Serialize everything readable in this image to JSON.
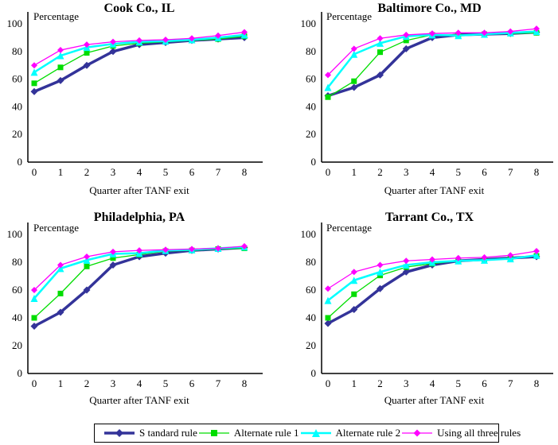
{
  "figure": {
    "background": "#ffffff",
    "text_color": "#000000"
  },
  "series_defs": [
    {
      "name": "S tandard rule",
      "color": "#333399",
      "marker": "diamond",
      "line_width": 3.5,
      "marker_size": 4.5
    },
    {
      "name": "Alternate rule 1",
      "color": "#00DD00",
      "marker": "square",
      "line_width": 1.3,
      "marker_size": 3.5
    },
    {
      "name": "Alternate rule 2",
      "color": "#00FFFF",
      "marker": "triangle",
      "line_width": 2.5,
      "marker_size": 4.5
    },
    {
      "name": "Using all three rules",
      "color": "#FF00FF",
      "marker": "diamond",
      "line_width": 1.3,
      "marker_size": 4
    }
  ],
  "chart_data": [
    {
      "type": "line",
      "title": "Cook Co., IL",
      "ylabel": "Percentage",
      "xlabel": "Quarter after TANF exit",
      "x": [
        0,
        1,
        2,
        3,
        4,
        5,
        6,
        7,
        8
      ],
      "ylim": [
        0,
        100
      ],
      "yticks": [
        0,
        20,
        40,
        60,
        80,
        100
      ],
      "grid": false,
      "legend_position": "bottom-shared",
      "series": [
        {
          "name": "S tandard rule",
          "values": [
            51,
            59,
            70,
            80,
            85,
            86.5,
            88,
            89,
            90
          ]
        },
        {
          "name": "Alternate rule 1",
          "values": [
            57,
            68.5,
            79,
            84,
            86,
            87,
            88,
            89,
            91
          ]
        },
        {
          "name": "Alternate rule 2",
          "values": [
            65,
            77,
            83,
            85.5,
            87,
            87.5,
            88.5,
            90,
            92
          ]
        },
        {
          "name": "Using all three rules",
          "values": [
            70,
            81,
            85,
            87,
            88,
            88.5,
            89.5,
            91.5,
            94
          ]
        }
      ]
    },
    {
      "type": "line",
      "title": "Baltimore Co., MD",
      "ylabel": "Percentage",
      "xlabel": "Quarter after TANF exit",
      "x": [
        0,
        1,
        2,
        3,
        4,
        5,
        6,
        7,
        8
      ],
      "ylim": [
        0,
        100
      ],
      "yticks": [
        0,
        20,
        40,
        60,
        80,
        100
      ],
      "grid": false,
      "legend_position": "bottom-shared",
      "series": [
        {
          "name": "S tandard rule",
          "values": [
            48,
            54,
            63,
            82,
            90,
            92,
            92.5,
            93,
            94
          ]
        },
        {
          "name": "Alternate rule 1",
          "values": [
            47,
            58.5,
            79.5,
            88,
            92,
            92,
            92.5,
            93,
            93.5
          ]
        },
        {
          "name": "Alternate rule 2",
          "values": [
            54,
            78,
            86,
            91,
            92,
            91.5,
            92.5,
            93.5,
            94.5
          ]
        },
        {
          "name": "Using all three rules",
          "values": [
            63,
            82,
            89.5,
            92,
            93,
            93.5,
            93.5,
            94.5,
            96.5
          ]
        }
      ]
    },
    {
      "type": "line",
      "title": "Philadelphia, PA",
      "ylabel": "Percentage",
      "xlabel": "Quarter after TANF exit",
      "x": [
        0,
        1,
        2,
        3,
        4,
        5,
        6,
        7,
        8
      ],
      "ylim": [
        0,
        100
      ],
      "yticks": [
        0,
        20,
        40,
        60,
        80,
        100
      ],
      "grid": false,
      "legend_position": "bottom-shared",
      "series": [
        {
          "name": "S tandard rule",
          "values": [
            34,
            44,
            60,
            78,
            84,
            86.5,
            88.5,
            89.5,
            90.5
          ]
        },
        {
          "name": "Alternate rule 1",
          "values": [
            40,
            57.5,
            77,
            83,
            85.5,
            88,
            88.5,
            89.5,
            90
          ]
        },
        {
          "name": "Alternate rule 2",
          "values": [
            54,
            75.5,
            81.5,
            86,
            86.5,
            88.5,
            89,
            90,
            91
          ]
        },
        {
          "name": "Using all three rules",
          "values": [
            60,
            78,
            84,
            87.5,
            88.5,
            89,
            89.5,
            90,
            91.5
          ]
        }
      ]
    },
    {
      "type": "line",
      "title": "Tarrant Co., TX",
      "ylabel": "Percentage",
      "xlabel": "Quarter after TANF exit",
      "x": [
        0,
        1,
        2,
        3,
        4,
        5,
        6,
        7,
        8
      ],
      "ylim": [
        0,
        100
      ],
      "yticks": [
        0,
        20,
        40,
        60,
        80,
        100
      ],
      "grid": false,
      "legend_position": "bottom-shared",
      "series": [
        {
          "name": "S tandard rule",
          "values": [
            36,
            46,
            61,
            73,
            78,
            81,
            82,
            83,
            84
          ]
        },
        {
          "name": "Alternate rule 1",
          "values": [
            40,
            57,
            70.5,
            76.5,
            79,
            81,
            81.5,
            83,
            84.5
          ]
        },
        {
          "name": "Alternate rule 2",
          "values": [
            52.5,
            67,
            73,
            78,
            80,
            81,
            81.5,
            82.5,
            85
          ]
        },
        {
          "name": "Using all three rules",
          "values": [
            61,
            73,
            78,
            81,
            82,
            83,
            83.5,
            85,
            88
          ]
        }
      ]
    }
  ]
}
